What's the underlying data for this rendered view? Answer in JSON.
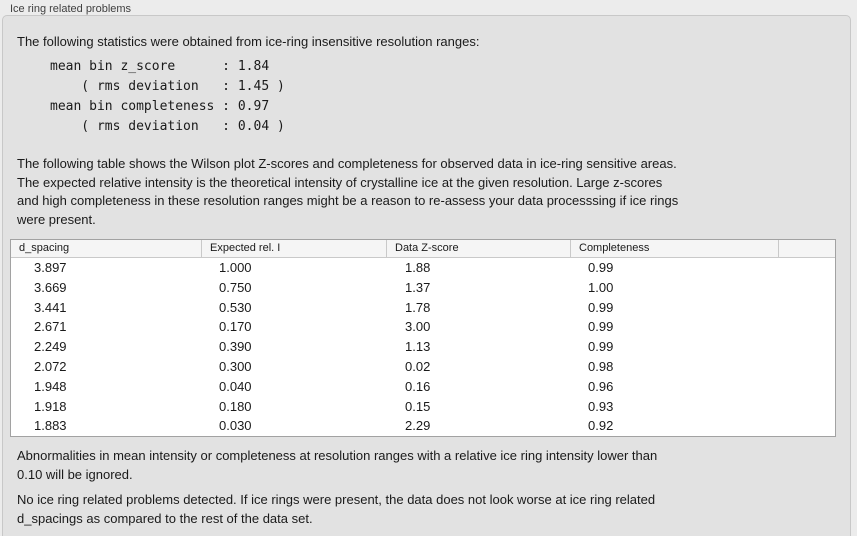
{
  "group": {
    "title": "Ice ring related problems"
  },
  "content": {
    "intro": "The following statistics were obtained from ice-ring insensitive resolution ranges:",
    "stats_block": "mean bin z_score      : 1.84\n    ( rms deviation   : 1.45 )\nmean bin completeness : 0.97\n    ( rms deviation   : 0.04 )",
    "table_description": "The following table shows the Wilson plot Z-scores and completeness for observed data in ice-ring sensitive areas.\nThe expected relative intensity is the theoretical intensity of crystalline ice at the given resolution. Large z-scores\nand high completeness in these resolution ranges might be a reason to re-assess your data processsing if ice rings\nwere present.",
    "ignore_note": "Abnormalities in mean intensity or completeness at resolution ranges with a relative ice ring intensity lower than\n0.10 will be ignored.",
    "conclusion": "No ice ring related problems detected. If ice rings were present, the data does not look worse at ice ring related\nd_spacings as compared to the rest of the data set."
  },
  "table": {
    "columns": [
      "d_spacing",
      "Expected rel. I",
      "Data Z-score",
      "Completeness",
      ""
    ],
    "rows": [
      [
        "3.897",
        "1.000",
        "1.88",
        "0.99"
      ],
      [
        "3.669",
        "0.750",
        "1.37",
        "1.00"
      ],
      [
        "3.441",
        "0.530",
        "1.78",
        "0.99"
      ],
      [
        "2.671",
        "0.170",
        "3.00",
        "0.99"
      ],
      [
        "2.249",
        "0.390",
        "1.13",
        "0.99"
      ],
      [
        "2.072",
        "0.300",
        "0.02",
        "0.98"
      ],
      [
        "1.948",
        "0.040",
        "0.16",
        "0.96"
      ],
      [
        "1.918",
        "0.180",
        "0.15",
        "0.93"
      ],
      [
        "1.883",
        "0.030",
        "2.29",
        "0.92"
      ]
    ]
  },
  "colors": {
    "page_bg": "#ececec",
    "panel_bg": "#e2e2e2",
    "panel_border": "#c8c8c8",
    "text": "#1a1a1a",
    "title": "#3f3f3f",
    "table_border": "#a2a2a2",
    "header_bg": "#f5f5f5",
    "header_line": "#c9c9c9"
  }
}
